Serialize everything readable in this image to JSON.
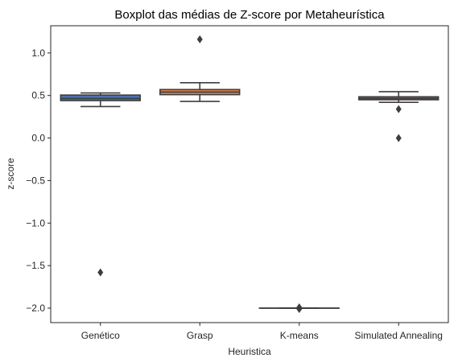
{
  "chart_data": {
    "type": "box",
    "title": "Boxplot das médias de Z-score por Metaheurística",
    "xlabel": "Heuristica",
    "ylabel": "z-score",
    "ylim": [
      -2.17,
      1.32
    ],
    "yticks": [
      -2.0,
      -1.5,
      -1.0,
      -0.5,
      0.0,
      0.5,
      1.0
    ],
    "ytick_labels": [
      "−2.0",
      "−1.5",
      "−1.0",
      "−0.5",
      "0.0",
      "0.5",
      "1.0"
    ],
    "grid": false,
    "categories": [
      "Genético",
      "Grasp",
      "K-means",
      "Simulated Annealing"
    ],
    "boxes": [
      {
        "category": "Genético",
        "whislo": 0.37,
        "q1": 0.44,
        "med": 0.465,
        "q3": 0.505,
        "whishi": 0.53,
        "fliers": [
          -1.58
        ],
        "color": "#4c72b0"
      },
      {
        "category": "Grasp",
        "whislo": 0.43,
        "q1": 0.51,
        "med": 0.54,
        "q3": 0.57,
        "whishi": 0.65,
        "fliers": [
          1.16
        ],
        "color": "#dd8452"
      },
      {
        "category": "K-means",
        "whislo": -2.0,
        "q1": -2.0,
        "med": -2.0,
        "q3": -2.0,
        "whishi": -2.0,
        "fliers": [
          -1.99,
          -2.0,
          -2.01
        ],
        "color": "#55a868"
      },
      {
        "category": "Simulated Annealing",
        "whislo": 0.42,
        "q1": 0.45,
        "med": 0.465,
        "q3": 0.485,
        "whishi": 0.545,
        "fliers": [
          0.34,
          0.0
        ],
        "color": "#c44e52"
      }
    ]
  }
}
